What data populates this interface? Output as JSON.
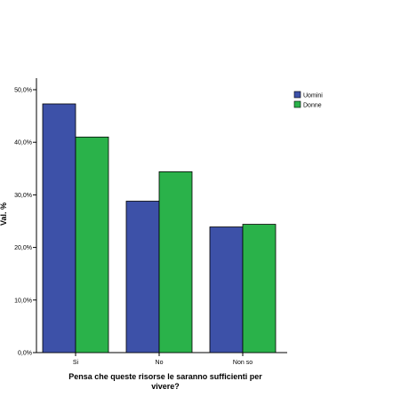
{
  "chart_data": {
    "type": "bar",
    "categories": [
      "Si",
      "No",
      "Non so"
    ],
    "series": [
      {
        "name": "Uomini",
        "values": [
          47.3,
          28.8,
          23.9
        ],
        "color": "#3d51a8"
      },
      {
        "name": "Donne",
        "values": [
          41.0,
          34.4,
          24.4
        ],
        "color": "#2ab24a"
      }
    ],
    "ylabel": "Val. %",
    "xlabel_lines": [
      "Pensa che queste risorse le saranno sufficienti per",
      "vivere?"
    ],
    "ylim": [
      0,
      50
    ],
    "yticks": [
      0,
      10,
      20,
      30,
      40,
      50
    ],
    "ytick_labels": [
      "0,0%",
      "10,0%",
      "20,0%",
      "30,0%",
      "40,0%",
      "50,0%"
    ],
    "grid": false,
    "legend_placement": "top-right"
  }
}
